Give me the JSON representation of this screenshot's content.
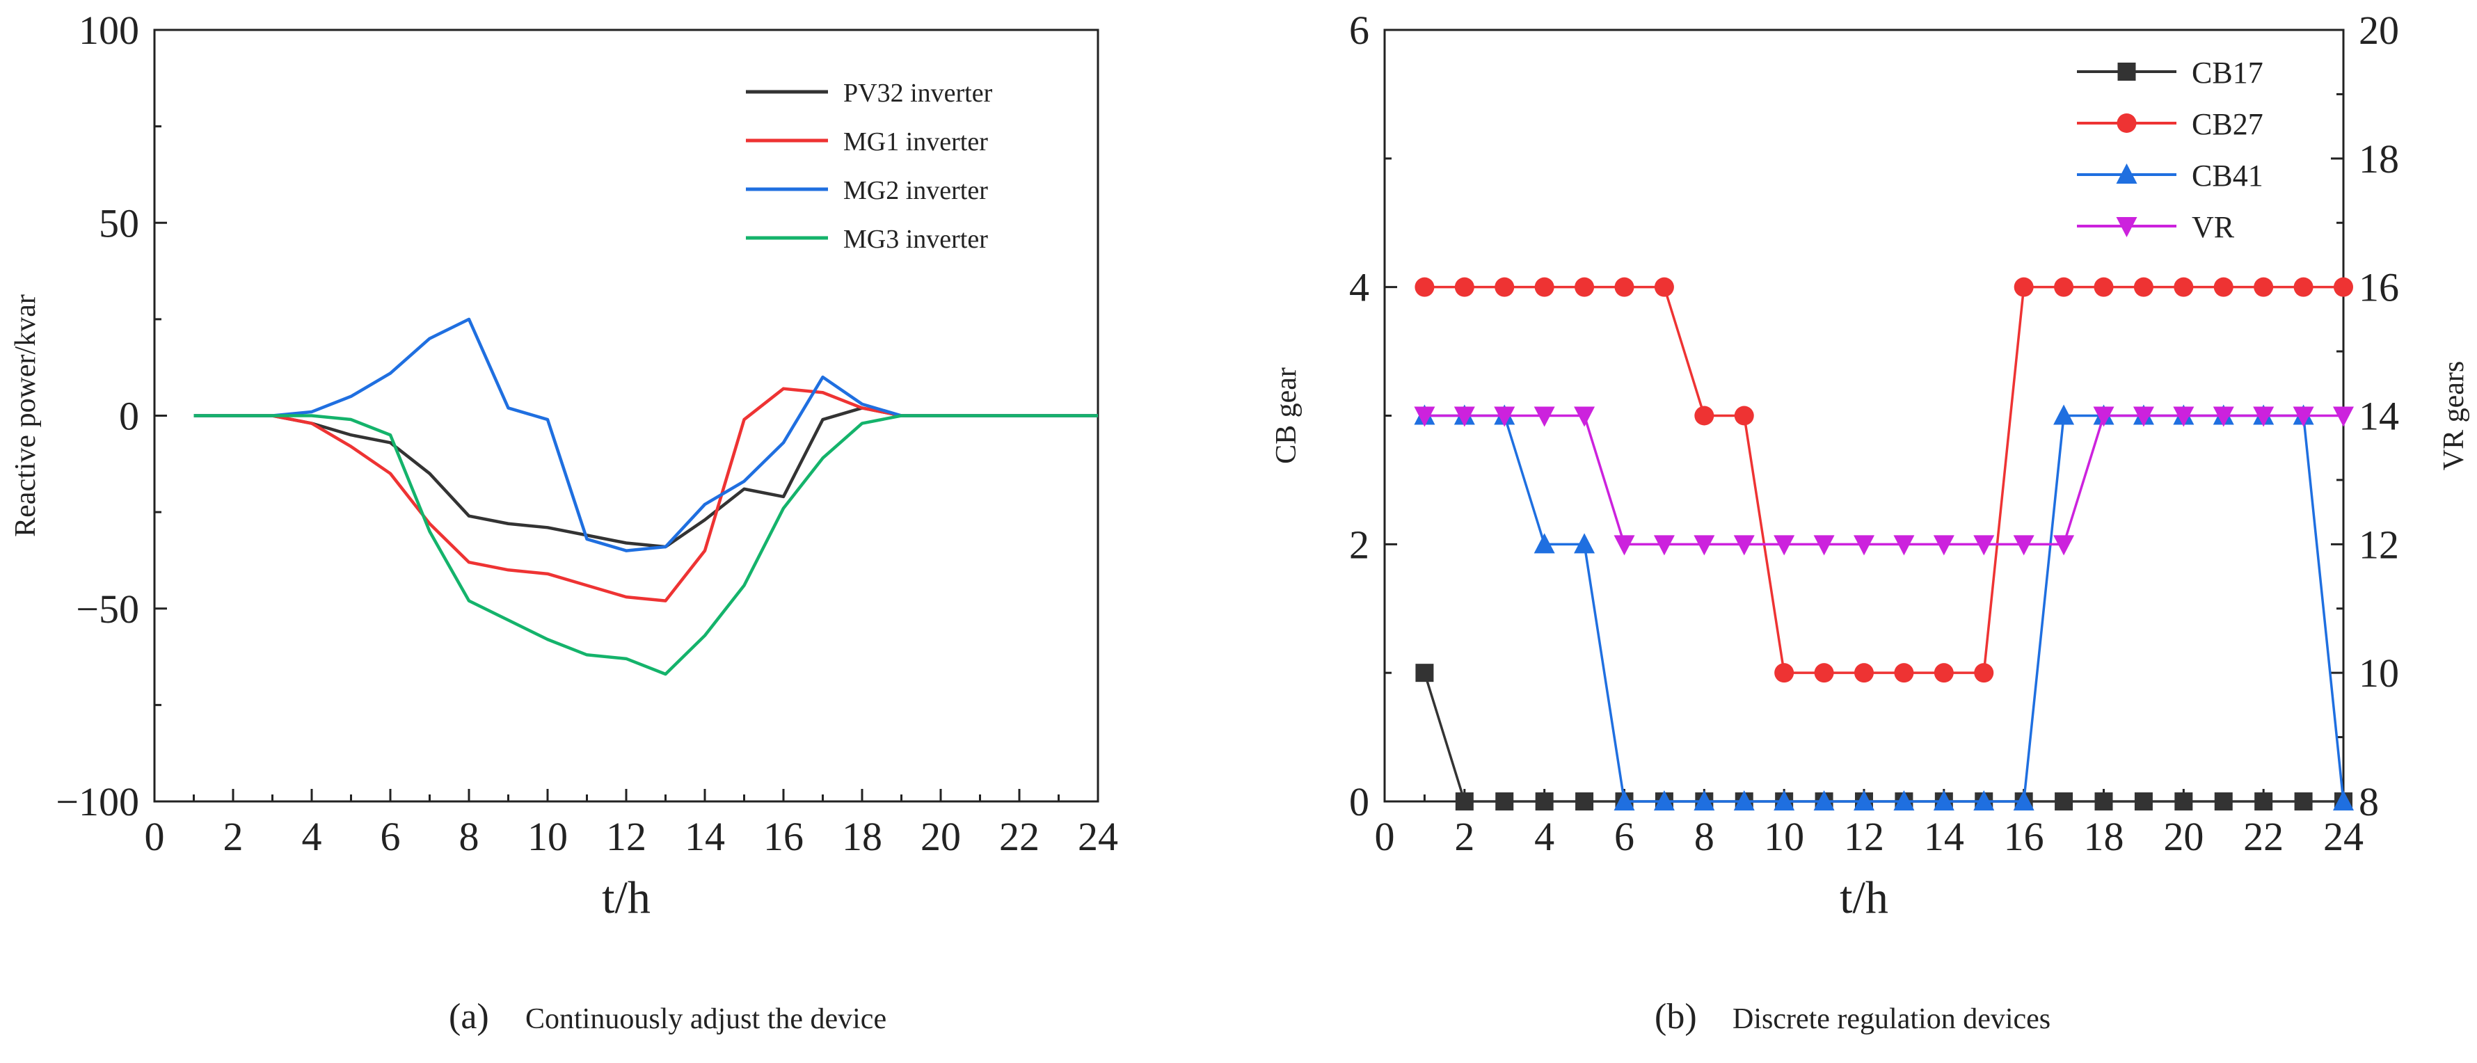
{
  "charts": {
    "a": {
      "caption_tag": "(a)",
      "caption_text": "Continuously adjust the device"
    },
    "b": {
      "caption_tag": "(b)",
      "caption_text": "Discrete regulation devices"
    }
  },
  "chart_data": [
    {
      "type": "line",
      "title": "",
      "xlabel": "t/h",
      "ylabel": "Reactive power/kvar",
      "xlim": [
        0,
        24
      ],
      "ylim": [
        -100,
        100
      ],
      "xticks": [
        0,
        2,
        4,
        6,
        8,
        10,
        12,
        14,
        16,
        18,
        20,
        22,
        24
      ],
      "yticks": [
        -100,
        -50,
        0,
        50,
        100
      ],
      "legend_position": "top-right",
      "x": [
        1,
        2,
        3,
        4,
        5,
        6,
        7,
        8,
        9,
        10,
        11,
        12,
        13,
        14,
        15,
        16,
        17,
        18,
        19,
        20,
        21,
        22,
        23,
        24
      ],
      "series": [
        {
          "name": "PV32 inverter",
          "color": "#333333",
          "values": [
            0,
            0,
            0,
            -2,
            -5,
            -7,
            -15,
            -26,
            -28,
            -29,
            -31,
            -33,
            -34,
            -27,
            -19,
            -21,
            -1,
            2,
            0,
            0,
            0,
            0,
            0,
            0
          ]
        },
        {
          "name": "MG1 inverter",
          "color": "#ee3333",
          "values": [
            0,
            0,
            0,
            -2,
            -8,
            -15,
            -28,
            -38,
            -40,
            -41,
            -44,
            -47,
            -48,
            -35,
            -1,
            7,
            6,
            2,
            0,
            0,
            0,
            0,
            0,
            0
          ]
        },
        {
          "name": "MG2 inverter",
          "color": "#1f6fe0",
          "values": [
            0,
            0,
            0,
            1,
            5,
            11,
            20,
            25,
            2,
            -1,
            -32,
            -35,
            -34,
            -23,
            -17,
            -7,
            10,
            3,
            0,
            0,
            0,
            0,
            0,
            0
          ]
        },
        {
          "name": "MG3 inverter",
          "color": "#14b36b",
          "values": [
            0,
            0,
            0,
            0,
            -1,
            -5,
            -30,
            -48,
            -53,
            -58,
            -62,
            -63,
            -67,
            -57,
            -44,
            -24,
            -11,
            -2,
            0,
            0,
            0,
            0,
            0,
            0
          ]
        }
      ]
    },
    {
      "type": "line",
      "title": "",
      "xlabel": "t/h",
      "ylabel": "CB gear",
      "y2label": "VR gears",
      "xlim": [
        0,
        24
      ],
      "ylim": [
        0,
        6
      ],
      "y2lim": [
        8,
        20
      ],
      "xticks": [
        0,
        2,
        4,
        6,
        8,
        10,
        12,
        14,
        16,
        18,
        20,
        22,
        24
      ],
      "yticks": [
        0,
        2,
        4,
        6
      ],
      "y2ticks": [
        8,
        10,
        12,
        14,
        16,
        18,
        20
      ],
      "legend_position": "top-right",
      "x": [
        1,
        2,
        3,
        4,
        5,
        6,
        7,
        8,
        9,
        10,
        11,
        12,
        13,
        14,
        15,
        16,
        17,
        18,
        19,
        20,
        21,
        22,
        23,
        24
      ],
      "series": [
        {
          "name": "CB17",
          "color": "#333333",
          "marker": "square",
          "axis": "left",
          "values": [
            1,
            0,
            0,
            0,
            0,
            0,
            0,
            0,
            0,
            0,
            0,
            0,
            0,
            0,
            0,
            0,
            0,
            0,
            0,
            0,
            0,
            0,
            0,
            0
          ]
        },
        {
          "name": "CB27",
          "color": "#ee3333",
          "marker": "circle",
          "axis": "left",
          "values": [
            4,
            4,
            4,
            4,
            4,
            4,
            4,
            3,
            3,
            1,
            1,
            1,
            1,
            1,
            1,
            4,
            4,
            4,
            4,
            4,
            4,
            4,
            4,
            4
          ]
        },
        {
          "name": "CB41",
          "color": "#1f6fe0",
          "marker": "triangle-up",
          "axis": "left",
          "values": [
            3,
            3,
            3,
            2,
            2,
            0,
            0,
            0,
            0,
            0,
            0,
            0,
            0,
            0,
            0,
            0,
            3,
            3,
            3,
            3,
            3,
            3,
            3,
            0
          ]
        },
        {
          "name": "VR",
          "color": "#cc22dd",
          "marker": "triangle-down",
          "axis": "right",
          "values": [
            14,
            14,
            14,
            14,
            14,
            12,
            12,
            12,
            12,
            12,
            12,
            12,
            12,
            12,
            12,
            12,
            12,
            14,
            14,
            14,
            14,
            14,
            14,
            14
          ]
        }
      ]
    }
  ]
}
